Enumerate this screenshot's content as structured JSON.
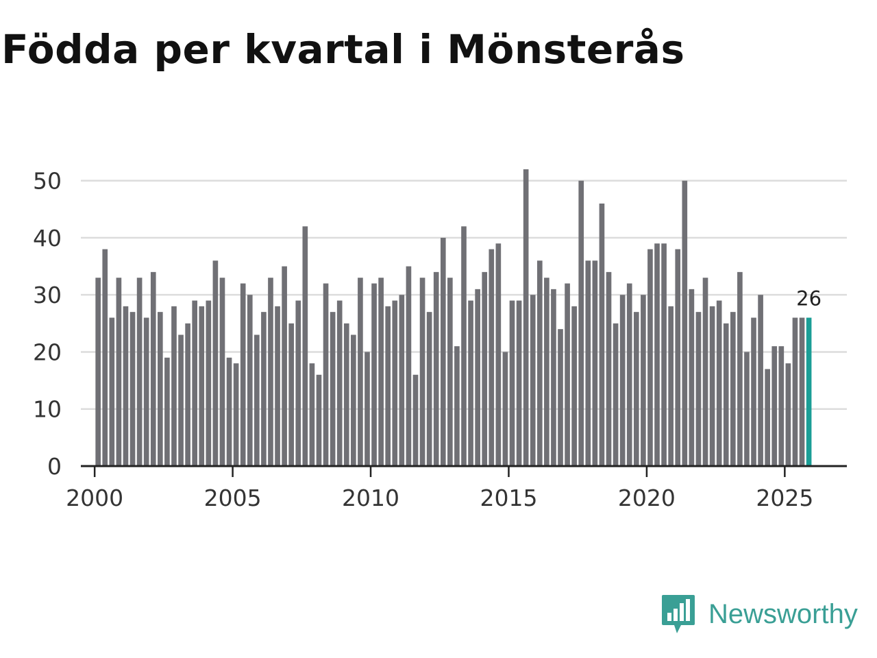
{
  "chart_data": {
    "type": "bar",
    "title": "Födda per kvartal i Mönsterås",
    "xlabel": "",
    "ylabel": "",
    "x_start": 2000,
    "x_step": 0.25,
    "xlim": [
      1999.5,
      2027.25
    ],
    "ylim": [
      0,
      55
    ],
    "yticks": [
      0,
      10,
      20,
      30,
      40,
      50
    ],
    "xticks": [
      2000,
      2005,
      2010,
      2015,
      2020,
      2025
    ],
    "grid": true,
    "highlight_index": 103,
    "highlight_label": "26",
    "bar_color": "#707075",
    "highlight_color": "#1a9e96",
    "series": [
      {
        "name": "Födda",
        "values": [
          33,
          38,
          26,
          33,
          28,
          27,
          33,
          26,
          34,
          27,
          19,
          28,
          23,
          25,
          29,
          28,
          29,
          36,
          33,
          19,
          18,
          32,
          30,
          23,
          27,
          33,
          28,
          35,
          25,
          29,
          42,
          18,
          16,
          32,
          27,
          29,
          25,
          23,
          33,
          20,
          32,
          33,
          28,
          29,
          30,
          35,
          16,
          33,
          27,
          34,
          40,
          33,
          21,
          42,
          29,
          31,
          34,
          38,
          39,
          20,
          29,
          29,
          52,
          30,
          36,
          33,
          31,
          24,
          32,
          28,
          50,
          36,
          36,
          46,
          34,
          25,
          30,
          32,
          27,
          30,
          38,
          39,
          39,
          28,
          38,
          50,
          31,
          27,
          33,
          28,
          29,
          25,
          27,
          34,
          20,
          26,
          30,
          17,
          21,
          21,
          18,
          26,
          26,
          26
        ]
      }
    ]
  },
  "brand": {
    "name": "Newsworthy",
    "color": "#3a9f95"
  }
}
